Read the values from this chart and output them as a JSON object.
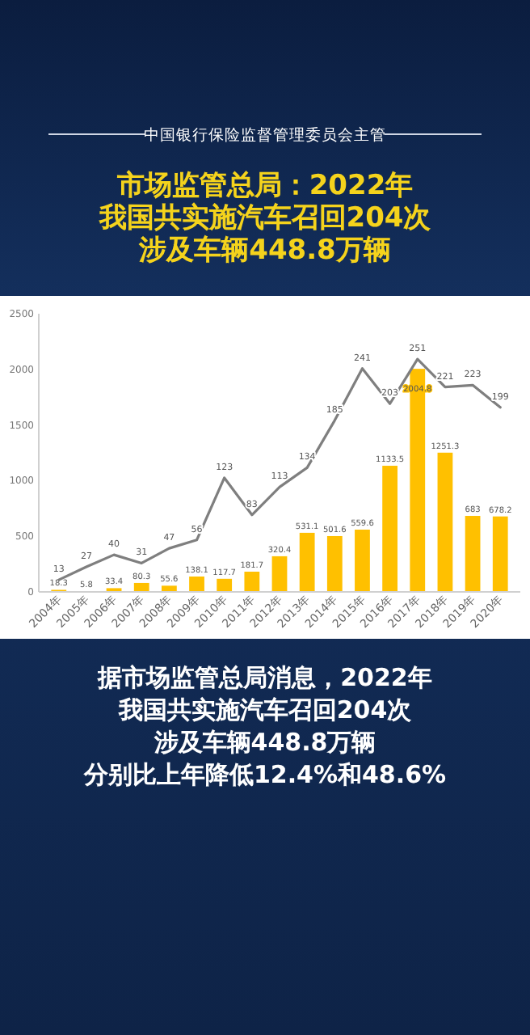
{
  "chart_data": {
    "type": "bar",
    "title": "市场监管总局：2022年我国共实施汽车召回204次涉及车辆448.8万辆",
    "subtitle": "中国银行保险监督管理委员会主管",
    "categories": [
      "2004年",
      "2005年",
      "2006年",
      "2007年",
      "2008年",
      "2009年",
      "2010年",
      "2011年",
      "2012年",
      "2013年",
      "2014年",
      "2015年",
      "2016年",
      "2017年",
      "2018年",
      "2019年",
      "2020年"
    ],
    "series": [
      {
        "color": "#ffc000",
        "values": [
          18.3,
          5.8,
          33.4,
          80.3,
          55.6,
          138.1,
          117.7,
          181.7,
          320.4,
          531.1,
          501.6,
          559.6,
          1133.5,
          2004.8,
          1251.3,
          683.0,
          678.2
        ]
      },
      {
        "type": "line",
        "axis": "y2",
        "color": "#7f7f7f",
        "values": [
          13,
          27,
          40,
          31,
          47,
          56,
          123,
          83,
          113,
          134,
          185,
          241,
          203,
          251,
          221,
          223,
          199
        ]
      }
    ],
    "ylim": [
      0,
      2500
    ],
    "yticks": [
      0,
      500,
      1000,
      1500,
      2000,
      2500
    ],
    "y2lim": [
      0,
      300
    ],
    "tick_labels": "xy",
    "data_labels": true,
    "grid": false,
    "marker": "none",
    "line_style": "solid",
    "annotations": [
      "据市场监管总局消息，2022年",
      "我国共实施汽车召回204次",
      "涉及车辆448.8万辆",
      "分别比上年降低12.4%和48.6%"
    ]
  }
}
